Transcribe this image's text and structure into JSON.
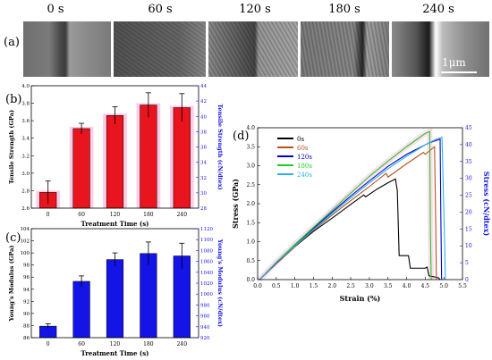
{
  "figure": {
    "panel_a_label": "(a)",
    "panel_b_label": "(b)",
    "panel_c_label": "(c)",
    "panel_d_label": "(d)",
    "sem_labels": [
      "0 s",
      "60 s",
      "120 s",
      "180 s",
      "240 s"
    ],
    "scale_bar_label": "1μm"
  },
  "chart_data": [
    {
      "id": "b",
      "type": "bar",
      "categories": [
        "0",
        "60",
        "120",
        "180",
        "240"
      ],
      "values": [
        2.78,
        3.51,
        3.66,
        3.78,
        3.75
      ],
      "errors": [
        0.13,
        0.06,
        0.1,
        0.14,
        0.16
      ],
      "xlabel": "Treatment Time (s)",
      "ylabel": "Tensile Strength (GPa)",
      "y2label": "Tensile Strength (cN/dtex)",
      "ylim": [
        2.6,
        4.0
      ],
      "yticks": [
        "2.6",
        "2.8",
        "3.0",
        "3.2",
        "3.4",
        "3.6",
        "3.8",
        "4.0"
      ],
      "y2lim": [
        28,
        44
      ],
      "y2ticks": [
        "28",
        "30",
        "32",
        "34",
        "36",
        "38",
        "40",
        "42",
        "44"
      ],
      "colors": {
        "bar": "#e8141e",
        "shadow": "#ffa0d2"
      }
    },
    {
      "id": "c",
      "type": "bar",
      "categories": [
        "0",
        "60",
        "120",
        "180",
        "240"
      ],
      "values": [
        87.9,
        95.3,
        98.9,
        99.9,
        99.5
      ],
      "errors": [
        0.4,
        0.9,
        1.1,
        1.9,
        2.1
      ],
      "xlabel": "Treatment Time (s)",
      "ylabel": "Young's Modulus (GPa)",
      "y2label": "Young's Modulus (cN/dtex)",
      "ylim": [
        86,
        104
      ],
      "yticks": [
        "86",
        "88",
        "90",
        "92",
        "94",
        "96",
        "98",
        "100",
        "102",
        "104"
      ],
      "y2lim": [
        920,
        1120
      ],
      "y2ticks": [
        "920",
        "940",
        "960",
        "980",
        "1000",
        "1020",
        "1040",
        "1060",
        "1080",
        "1100",
        "1120"
      ],
      "colors": {
        "bar": "#1414e6"
      }
    },
    {
      "id": "d",
      "type": "line",
      "xlabel": "Strain (%)",
      "ylabel": "Stress (GPa)",
      "y2label": "Stress (cN/dtex)",
      "xlim": [
        0,
        5.5
      ],
      "xticks": [
        "0.0",
        "0.5",
        "1.0",
        "1.5",
        "2.0",
        "2.5",
        "3.0",
        "3.5",
        "4.0",
        "4.5",
        "5.0",
        "5.5"
      ],
      "ylim": [
        0,
        4.0
      ],
      "yticks": [
        "0.0",
        "0.5",
        "1.0",
        "1.5",
        "2.0",
        "2.5",
        "3.0",
        "3.5",
        "4.0"
      ],
      "y2lim": [
        0,
        45
      ],
      "y2ticks": [
        "0",
        "5",
        "10",
        "15",
        "20",
        "25",
        "30",
        "35",
        "40",
        "45"
      ],
      "legend_position": "top-left",
      "series": [
        {
          "name": "0s",
          "color": "#000000",
          "x": [
            0.05,
            0.5,
            1.0,
            1.5,
            2.0,
            2.5,
            2.85,
            2.9,
            3.2,
            3.5,
            3.7,
            3.75,
            3.8,
            4.0,
            4.05,
            4.1,
            4.5,
            4.55,
            4.6,
            4.85,
            4.9
          ],
          "y": [
            0.0,
            0.42,
            0.87,
            1.27,
            1.62,
            1.98,
            2.23,
            2.18,
            2.38,
            2.55,
            2.65,
            2.35,
            0.63,
            0.63,
            0.63,
            0.3,
            0.3,
            0.33,
            0.1,
            0.05,
            0.0
          ]
        },
        {
          "name": "60s",
          "color": "#b8501e",
          "x": [
            0.05,
            0.5,
            1.0,
            1.5,
            2.0,
            2.5,
            3.0,
            3.45,
            3.5,
            4.0,
            4.45,
            4.5,
            4.75,
            4.78,
            4.8
          ],
          "y": [
            0.0,
            0.43,
            0.88,
            1.3,
            1.7,
            2.08,
            2.45,
            2.8,
            2.7,
            3.05,
            3.35,
            3.3,
            3.5,
            1.6,
            0.0
          ]
        },
        {
          "name": "120s",
          "color": "#0000cc",
          "x": [
            0.05,
            0.5,
            1.0,
            1.5,
            2.0,
            2.5,
            3.0,
            3.5,
            4.0,
            4.4,
            4.6,
            4.9,
            4.92,
            4.94
          ],
          "y": [
            0.0,
            0.45,
            0.9,
            1.35,
            1.78,
            2.2,
            2.6,
            2.98,
            3.3,
            3.5,
            3.6,
            3.7,
            1.6,
            0.0
          ]
        },
        {
          "name": "180s",
          "color": "#22cc22",
          "x": [
            0.05,
            0.5,
            1.0,
            1.5,
            2.0,
            2.5,
            3.0,
            3.5,
            4.0,
            4.5,
            4.62,
            4.64,
            4.66
          ],
          "y": [
            0.0,
            0.46,
            0.93,
            1.38,
            1.83,
            2.28,
            2.72,
            3.12,
            3.5,
            3.85,
            3.9,
            1.2,
            0.0
          ]
        },
        {
          "name": "240s",
          "color": "#2ab4e6",
          "x": [
            0.05,
            0.5,
            1.0,
            1.5,
            2.0,
            2.5,
            3.0,
            3.5,
            4.0,
            4.5,
            4.8,
            4.95,
            5.02,
            5.04
          ],
          "y": [
            0.0,
            0.45,
            0.89,
            1.32,
            1.74,
            2.15,
            2.55,
            2.92,
            3.25,
            3.55,
            3.7,
            3.75,
            1.0,
            0.0
          ]
        }
      ],
      "colors": {
        "shadow": "#ffb4dc"
      }
    }
  ]
}
